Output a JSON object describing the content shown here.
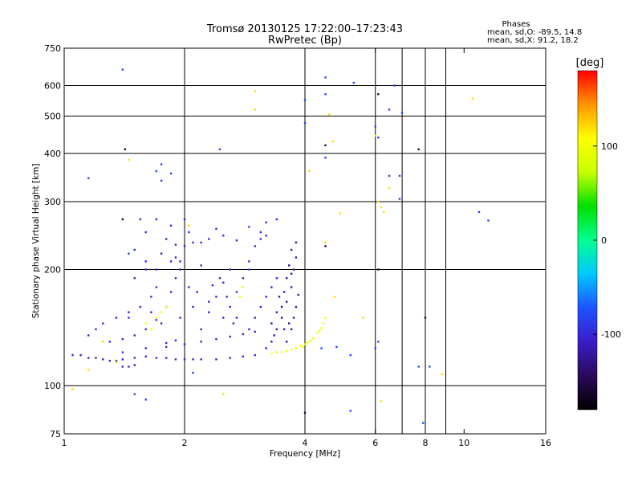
{
  "chart_data": {
    "type": "scatter",
    "title": "Tromsø 20130125 17:22:00–17:23:43",
    "subtitle": "RwPretec (Bp)",
    "xlabel": "Frequency [MHz]",
    "ylabel": "Stationary phase Virtual Height [km]",
    "x_scale": "log2",
    "y_scale": "log",
    "xlim": [
      1,
      16
    ],
    "ylim": [
      75,
      750
    ],
    "x_ticks": [
      1,
      2,
      4,
      6,
      8,
      10,
      16
    ],
    "y_ticks": [
      75,
      100,
      200,
      300,
      400,
      500,
      600,
      750
    ],
    "x_gridlines": [
      2,
      4,
      6,
      7,
      8,
      9
    ],
    "y_gridlines": [
      100,
      200,
      300,
      400,
      500,
      600
    ],
    "stats": {
      "heading": "Phases",
      "line_o": "mean, sd,O: -89.5, 14.8",
      "line_x": "mean, sd,X:  91.2, 18.2"
    },
    "colorbar": {
      "label": "[deg]",
      "range": [
        -180,
        180
      ],
      "ticks": [
        100,
        0,
        -100
      ],
      "tick_labels": [
        "100",
        "0",
        "-100"
      ],
      "colormap": [
        "#000000",
        "#2a0a5a",
        "#3a1cc8",
        "#1e52ff",
        "#00c8ff",
        "#00ff90",
        "#00e000",
        "#c8ff00",
        "#ffff00",
        "#ff9600",
        "#ff0000"
      ]
    },
    "series": [
      {
        "trace": "main trace",
        "phase_deg": -100,
        "points": [
          [
            1.05,
            120
          ],
          [
            1.1,
            120
          ],
          [
            1.15,
            118
          ],
          [
            1.2,
            118
          ],
          [
            1.25,
            117
          ],
          [
            1.3,
            116
          ],
          [
            1.35,
            116
          ],
          [
            1.4,
            117
          ],
          [
            1.5,
            118
          ],
          [
            1.6,
            119
          ],
          [
            1.7,
            118
          ],
          [
            1.8,
            118
          ],
          [
            1.9,
            117
          ],
          [
            2.0,
            117
          ],
          [
            2.1,
            117
          ],
          [
            2.2,
            117
          ],
          [
            2.4,
            117
          ],
          [
            2.6,
            118
          ],
          [
            2.8,
            119
          ],
          [
            3.0,
            120
          ],
          [
            1.3,
            130
          ],
          [
            1.4,
            132
          ],
          [
            1.5,
            135
          ],
          [
            1.6,
            140
          ],
          [
            1.7,
            148
          ],
          [
            1.8,
            160
          ],
          [
            1.85,
            175
          ],
          [
            1.9,
            190
          ],
          [
            1.95,
            210
          ],
          [
            2.0,
            230
          ],
          [
            2.05,
            250
          ],
          [
            1.6,
            125
          ],
          [
            1.8,
            126
          ],
          [
            2.0,
            128
          ],
          [
            2.2,
            130
          ],
          [
            2.4,
            132
          ],
          [
            2.6,
            134
          ],
          [
            2.8,
            136
          ],
          [
            3.0,
            138
          ],
          [
            1.7,
            200
          ],
          [
            1.75,
            220
          ],
          [
            1.8,
            240
          ],
          [
            1.85,
            260
          ],
          [
            2.2,
            140
          ],
          [
            2.3,
            155
          ],
          [
            2.4,
            170
          ],
          [
            2.5,
            185
          ],
          [
            2.6,
            200
          ],
          [
            2.5,
            150
          ],
          [
            2.6,
            160
          ],
          [
            2.7,
            175
          ],
          [
            2.8,
            190
          ],
          [
            2.9,
            210
          ],
          [
            3.0,
            230
          ],
          [
            3.1,
            250
          ],
          [
            3.2,
            265
          ],
          [
            3.4,
            270
          ],
          [
            2.9,
            140
          ],
          [
            3.0,
            150
          ],
          [
            3.1,
            160
          ],
          [
            3.2,
            170
          ],
          [
            3.3,
            180
          ],
          [
            3.4,
            190
          ],
          [
            2.2,
            235
          ],
          [
            2.3,
            240
          ],
          [
            2.5,
            245
          ],
          [
            2.7,
            238
          ],
          [
            1.5,
            190
          ],
          [
            1.6,
            200
          ],
          [
            1.7,
            180
          ],
          [
            1.65,
            170
          ],
          [
            1.55,
            160
          ],
          [
            1.45,
            150
          ],
          [
            1.5,
            225
          ],
          [
            1.6,
            210
          ],
          [
            1.55,
            270
          ],
          [
            1.6,
            250
          ],
          [
            1.7,
            270
          ],
          [
            1.9,
            232
          ],
          [
            2.1,
            235
          ],
          [
            2.4,
            255
          ],
          [
            2.0,
            270
          ],
          [
            2.2,
            205
          ],
          [
            3.1,
            240
          ],
          [
            3.2,
            245
          ],
          [
            1.15,
            135
          ],
          [
            1.2,
            140
          ],
          [
            1.25,
            145
          ],
          [
            1.35,
            150
          ],
          [
            1.45,
            155
          ],
          [
            1.65,
            155
          ],
          [
            1.75,
            145
          ],
          [
            1.95,
            150
          ],
          [
            2.1,
            160
          ],
          [
            2.3,
            165
          ],
          [
            2.7,
            150
          ],
          [
            1.85,
            210
          ],
          [
            1.9,
            215
          ],
          [
            1.95,
            200
          ],
          [
            2.05,
            180
          ],
          [
            2.15,
            175
          ],
          [
            2.35,
            182
          ],
          [
            2.45,
            190
          ],
          [
            2.55,
            170
          ],
          [
            2.65,
            145
          ],
          [
            1.4,
            112
          ],
          [
            1.45,
            112
          ],
          [
            1.5,
            113
          ],
          [
            1.8,
            129
          ],
          [
            1.9,
            131
          ]
        ]
      },
      {
        "trace": "upper branches",
        "phase_deg": -120,
        "points": [
          [
            3.2,
            125
          ],
          [
            3.3,
            130
          ],
          [
            3.4,
            140
          ],
          [
            3.5,
            150
          ],
          [
            3.6,
            165
          ],
          [
            3.7,
            180
          ],
          [
            3.75,
            200
          ],
          [
            3.8,
            215
          ],
          [
            3.7,
            140
          ],
          [
            3.75,
            150
          ],
          [
            3.8,
            160
          ],
          [
            3.85,
            172
          ],
          [
            3.6,
            130
          ],
          [
            3.65,
            145
          ],
          [
            3.55,
            175
          ],
          [
            3.6,
            190
          ],
          [
            3.65,
            205
          ],
          [
            3.7,
            225
          ],
          [
            3.8,
            235
          ],
          [
            3.3,
            145
          ],
          [
            3.4,
            155
          ],
          [
            3.5,
            160
          ],
          [
            3.45,
            170
          ],
          [
            3.35,
            135
          ],
          [
            3.55,
            140
          ],
          [
            3.7,
            195
          ]
        ]
      },
      {
        "trace": "X-mode trace",
        "phase_deg": 100,
        "points": [
          [
            3.3,
            121
          ],
          [
            3.4,
            122
          ],
          [
            3.5,
            122
          ],
          [
            3.6,
            123
          ],
          [
            3.7,
            124
          ],
          [
            3.8,
            125
          ],
          [
            3.9,
            127
          ],
          [
            4.0,
            128
          ],
          [
            4.1,
            130
          ],
          [
            4.2,
            133
          ],
          [
            4.3,
            137
          ],
          [
            4.4,
            141
          ],
          [
            4.45,
            145
          ],
          [
            4.5,
            150
          ],
          [
            3.95,
            126
          ],
          [
            4.05,
            129
          ],
          [
            4.15,
            131
          ],
          [
            4.35,
            139
          ],
          [
            1.6,
            145
          ],
          [
            1.7,
            150
          ],
          [
            1.75,
            155
          ],
          [
            1.65,
            140
          ],
          [
            1.8,
            160
          ],
          [
            2.75,
            170
          ],
          [
            2.8,
            180
          ]
        ]
      },
      {
        "trace": "scattered echoes",
        "phase_deg": -80,
        "points": [
          [
            1.4,
            660
          ],
          [
            1.15,
            345
          ],
          [
            1.75,
            375
          ],
          [
            1.85,
            355
          ],
          [
            1.75,
            340
          ],
          [
            1.45,
            220
          ],
          [
            2.45,
            410
          ],
          [
            4.5,
            630
          ],
          [
            5.3,
            610
          ],
          [
            6.7,
            600
          ],
          [
            4.0,
            550
          ],
          [
            4.5,
            570
          ],
          [
            4.0,
            480
          ],
          [
            6.5,
            520
          ],
          [
            7.0,
            510
          ],
          [
            6.0,
            470
          ],
          [
            6.1,
            440
          ],
          [
            4.5,
            390
          ],
          [
            6.5,
            350
          ],
          [
            6.9,
            350
          ],
          [
            6.9,
            305
          ],
          [
            10.9,
            282
          ],
          [
            11.5,
            268
          ],
          [
            6.0,
            125
          ],
          [
            7.7,
            112
          ],
          [
            8.2,
            112
          ],
          [
            5.2,
            86
          ],
          [
            7.9,
            80
          ],
          [
            1.6,
            92
          ],
          [
            1.5,
            95
          ],
          [
            2.1,
            108
          ],
          [
            4.4,
            125
          ],
          [
            4.8,
            126
          ],
          [
            5.2,
            120
          ],
          [
            1.4,
            122
          ],
          [
            6.1,
            130
          ],
          [
            2.5,
            245
          ],
          [
            2.9,
            200
          ],
          [
            2.9,
            258
          ],
          [
            1.7,
            360
          ]
        ]
      },
      {
        "trace": "warm outliers",
        "phase_deg": 120,
        "points": [
          [
            3.0,
            580
          ],
          [
            3.0,
            520
          ],
          [
            4.6,
            505
          ],
          [
            10.5,
            555
          ],
          [
            4.7,
            430
          ],
          [
            4.9,
            280
          ],
          [
            6.1,
            300
          ],
          [
            6.2,
            290
          ],
          [
            6.3,
            282
          ],
          [
            6.5,
            325
          ],
          [
            4.1,
            360
          ],
          [
            1.45,
            385
          ],
          [
            1.05,
            98
          ],
          [
            1.15,
            110
          ],
          [
            1.25,
            130
          ],
          [
            2.5,
            95
          ],
          [
            5.6,
            150
          ],
          [
            8.8,
            107
          ],
          [
            6.2,
            91
          ],
          [
            1.35,
            115
          ],
          [
            4.75,
            170
          ],
          [
            6.0,
            445
          ],
          [
            4.5,
            235
          ],
          [
            2.05,
            260
          ]
        ]
      },
      {
        "trace": "dark outliers",
        "phase_deg": -150,
        "points": [
          [
            1.42,
            410
          ],
          [
            7.7,
            410
          ],
          [
            4.5,
            420
          ],
          [
            4.0,
            85
          ],
          [
            8.0,
            150
          ],
          [
            4.5,
            230
          ],
          [
            1.4,
            270
          ],
          [
            6.1,
            570
          ],
          [
            6.1,
            200
          ]
        ]
      }
    ]
  }
}
